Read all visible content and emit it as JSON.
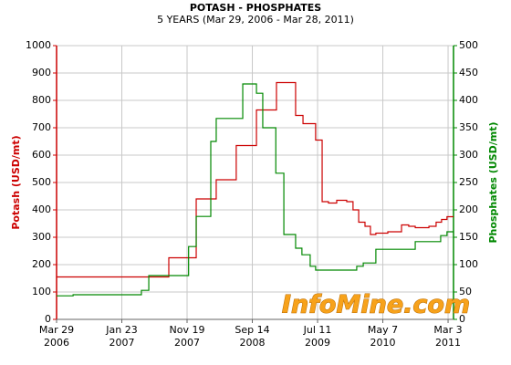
{
  "chart_data": {
    "type": "line",
    "step": "after",
    "title": "POTASH - PHOSPHATES",
    "subtitle": "5 YEARS (Mar 29, 2006 - Mar 28, 2011)",
    "y_label": "Potash (USD/mt)",
    "y2_label": "Phosphates (USD/mt)",
    "watermark": "InfoMine.com",
    "grid": true,
    "xlim": [
      "2006-03-29",
      "2011-03-28"
    ],
    "xticks": [
      {
        "value": "2006-03-29",
        "label": [
          "Mar 29",
          "2006"
        ]
      },
      {
        "value": "2007-01-23",
        "label": [
          "Jan 23",
          "2007"
        ]
      },
      {
        "value": "2007-11-19",
        "label": [
          "Nov 19",
          "2007"
        ]
      },
      {
        "value": "2008-09-14",
        "label": [
          "Sep 14",
          "2008"
        ]
      },
      {
        "value": "2009-07-11",
        "label": [
          "Jul 11",
          "2009"
        ]
      },
      {
        "value": "2010-05-07",
        "label": [
          "May 7",
          "2010"
        ]
      },
      {
        "value": "2011-03-03",
        "label": [
          "Mar 3",
          "2011"
        ]
      }
    ],
    "ylim": [
      0,
      1000
    ],
    "yticks": [
      0,
      100,
      200,
      300,
      400,
      500,
      600,
      700,
      800,
      900,
      1000
    ],
    "y_color": "#cc0000",
    "y2lim": [
      0,
      500
    ],
    "y2ticks": [
      0,
      50,
      100,
      150,
      200,
      250,
      300,
      350,
      400,
      450,
      500
    ],
    "y2_color": "#008800",
    "series": [
      {
        "name": "Potash",
        "color": "#cc0000",
        "x": [
          "2006-03-29",
          "2007-05-01",
          "2007-08-27",
          "2007-12-31",
          "2008-04-01",
          "2008-07-02",
          "2008-10-03",
          "2009-01-03",
          "2009-04-01",
          "2009-05-05",
          "2009-07-02",
          "2009-08-01",
          "2009-08-30",
          "2009-10-07",
          "2009-11-22",
          "2009-12-21",
          "2010-01-16",
          "2010-02-14",
          "2010-03-11",
          "2010-04-05",
          "2010-05-30",
          "2010-08-01",
          "2010-09-03",
          "2010-10-03",
          "2010-12-05",
          "2011-01-07",
          "2011-02-01",
          "2011-02-26"
        ],
        "values": [
          155,
          155,
          225,
          440,
          510,
          635,
          765,
          865,
          745,
          715,
          655,
          430,
          425,
          435,
          430,
          400,
          355,
          340,
          310,
          315,
          320,
          345,
          340,
          335,
          340,
          355,
          365,
          375
        ]
      },
      {
        "name": "Phosphates",
        "color": "#008800",
        "axis": "y2",
        "x": [
          "2006-03-29",
          "2006-06-13",
          "2007-04-23",
          "2007-05-27",
          "2007-11-26",
          "2007-12-31",
          "2008-03-07",
          "2008-04-01",
          "2008-08-01",
          "2008-10-03",
          "2008-11-01",
          "2008-12-31",
          "2009-02-06",
          "2009-04-01",
          "2009-04-30",
          "2009-06-07",
          "2009-07-02",
          "2010-01-07",
          "2010-02-06",
          "2010-04-05",
          "2010-10-03",
          "2011-01-28",
          "2011-02-26"
        ],
        "values": [
          43,
          45,
          53,
          80,
          133,
          188,
          325,
          367,
          430,
          413,
          350,
          267,
          155,
          130,
          118,
          97,
          90,
          97,
          103,
          128,
          142,
          153,
          160
        ]
      }
    ]
  }
}
